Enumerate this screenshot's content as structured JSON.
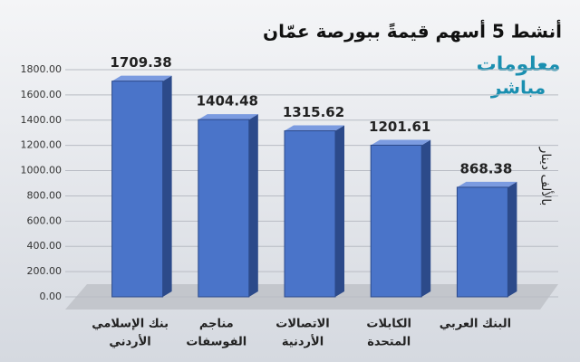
{
  "chart_data": {
    "type": "bar3d",
    "title": "أنشط 5 أسهم قيمةً ببورصة عمّان",
    "logo": [
      "معلومات",
      "مباشر"
    ],
    "y_label": "بالألف دينار",
    "categories": [
      [
        "بنك الإسلامي",
        "الأردني"
      ],
      [
        "مناجم",
        "الفوسفات"
      ],
      [
        "الاتصالات",
        "الأردنية"
      ],
      [
        "الكابلات",
        "المتحدة"
      ],
      [
        "البنك العربي"
      ]
    ],
    "values": [
      1709.38,
      1404.48,
      1315.62,
      1201.61,
      868.38
    ],
    "color": "#4a74c9",
    "ylim": [
      0,
      1800
    ],
    "yticks": [
      {
        "value": 0,
        "label": "0.00"
      },
      {
        "value": 200,
        "label": "200.00"
      },
      {
        "value": 400,
        "label": "400.00"
      },
      {
        "value": 600,
        "label": "600.00"
      },
      {
        "value": 800,
        "label": "800.00"
      },
      {
        "value": 1000,
        "label": "1000.00"
      },
      {
        "value": 1200,
        "label": "1200.00"
      },
      {
        "value": 1400,
        "label": "1400.00"
      },
      {
        "value": 1600,
        "label": "1600.00"
      },
      {
        "value": 1800,
        "label": "1800.00"
      }
    ],
    "grid": true
  }
}
